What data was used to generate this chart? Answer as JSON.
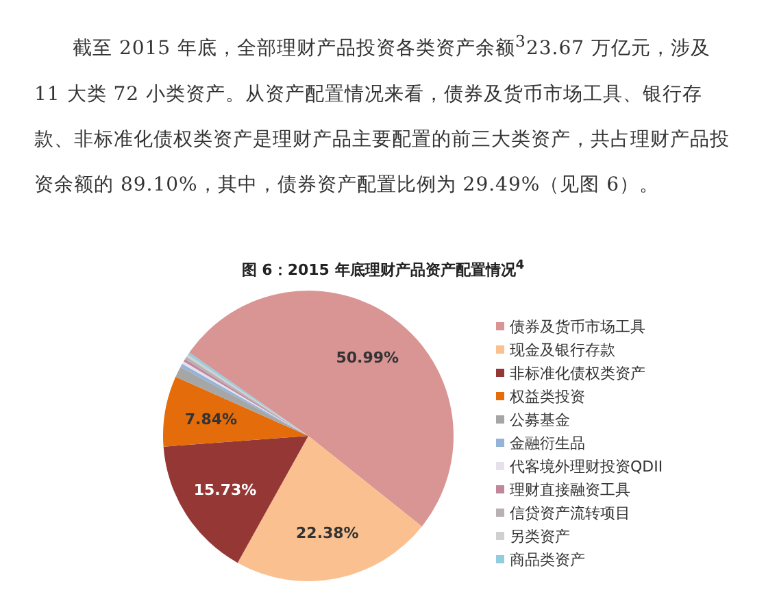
{
  "chart_data": {
    "type": "pie",
    "title": "图 6：2015 年底理财产品资产配置情况$^{4}$",
    "annotations": [
      "截至 2015 年底，全部理财产品投资各类资产余额$^{3}$23.67 万亿元，涉及 11 大类 72 小类资产。从资产配置情况来看，债券及货币市场工具、银行存款、非标准化债权类资产是理财产品主要配置的前三大类资产，共占理财产品投资余额的 89.10%，其中，债券资产配置比例为 29.49%（见图 6）。"
    ],
    "categories": [
      "债券及货币市场工具",
      "现金及银行存款",
      "非标准化债权类资产",
      "权益类投资",
      "公募基金",
      "金融衍生品",
      "代客境外理财投资QDII",
      "理财直接融资工具",
      "信贷资产流转项目",
      "另类资产",
      "商品类资产"
    ],
    "values": [
      50.99,
      22.38,
      15.73,
      7.84,
      1.2,
      0.4,
      0.3,
      0.3,
      0.3,
      0.28,
      0.28
    ],
    "value_labels": [
      "50.99%",
      "22.38%",
      "15.73%",
      "7.84%",
      null,
      null,
      null,
      null,
      null,
      null,
      null
    ],
    "colors": [
      "#d99594",
      "#fac090",
      "#953735",
      "#e46c0a",
      "#a6a6a6",
      "#95b3d7",
      "#e6e0ec",
      "#c0879c",
      "#b8b0b4",
      "#d0d0d0",
      "#93cddd"
    ],
    "legend": "right"
  }
}
